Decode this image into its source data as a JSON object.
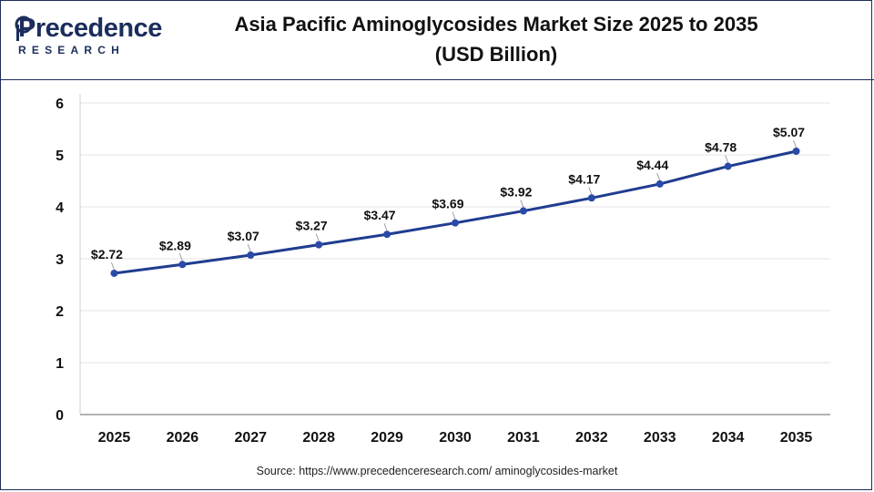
{
  "header": {
    "logo_word": "Precedence",
    "logo_sub": "RESEARCH",
    "title_line1": "Asia Pacific Aminoglycosides Market Size 2025 to 2035",
    "title_line2": "(USD Billion)"
  },
  "footer": {
    "source": "Source: https://www.precedenceresearch.com/ aminoglycosides-market"
  },
  "colors": {
    "brand": "#1b2d5c",
    "line": "#1f3c8f",
    "marker": "#2a4aa8",
    "grid": "#e3e3e3"
  },
  "chart_data": {
    "type": "line",
    "title": "Asia Pacific Aminoglycosides Market Size 2025 to 2035 (USD Billion)",
    "xlabel": "",
    "ylabel": "",
    "ylim": [
      0,
      6
    ],
    "yticks": [
      "0",
      "1",
      "2",
      "3",
      "4",
      "5",
      "6"
    ],
    "grid": true,
    "legend": "none",
    "categories": [
      "2025",
      "2026",
      "2027",
      "2028",
      "2029",
      "2030",
      "2031",
      "2032",
      "2033",
      "2034",
      "2035"
    ],
    "series": [
      {
        "values": [
          2.72,
          2.89,
          3.07,
          3.27,
          3.47,
          3.69,
          3.92,
          4.17,
          4.44,
          4.78,
          5.07
        ],
        "labels": [
          "$2.72",
          "$2.89",
          "$3.07",
          "$3.27",
          "$3.47",
          "$3.69",
          "$3.92",
          "$4.17",
          "$4.44",
          "$4.78",
          "$5.07"
        ]
      }
    ]
  }
}
